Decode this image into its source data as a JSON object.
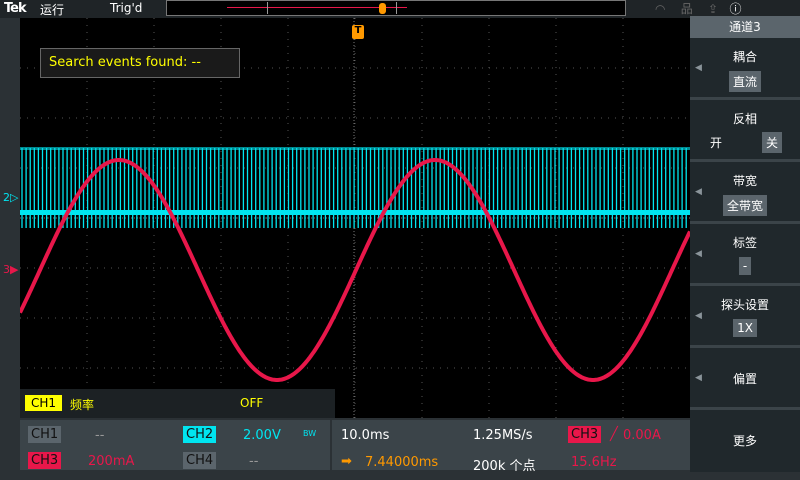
{
  "top": {
    "logo": "Tek",
    "run_state": "运行",
    "trigger_state": "Trig'd"
  },
  "search": {
    "text": "Search events found:  --"
  },
  "panel": {
    "title": "通道3",
    "items": [
      {
        "label": "耦合",
        "value": "直流"
      },
      {
        "label": "反相",
        "on": "开",
        "off": "关"
      },
      {
        "label": "带宽",
        "value": "全带宽"
      },
      {
        "label": "标签",
        "value": "-"
      },
      {
        "label": "探头设置",
        "value": "1X"
      },
      {
        "label": "偏置"
      },
      {
        "label": "更多"
      }
    ]
  },
  "measurement": {
    "channel": "CH1",
    "type": "频率",
    "value": "OFF"
  },
  "channels": {
    "ch1": {
      "label": "CH1",
      "scale": "--"
    },
    "ch2": {
      "label": "CH2",
      "scale": "2.00V",
      "bw": "BW"
    },
    "ch3": {
      "label": "CH3",
      "scale": "200mA"
    },
    "ch4": {
      "label": "CH4",
      "scale": "--"
    }
  },
  "timebase": {
    "scale": "10.0ms",
    "sample_rate": "1.25MS/s",
    "position": "7.44000ms",
    "record_length": "200k 个点"
  },
  "trigger": {
    "source": "CH3",
    "level": "0.00A",
    "frequency": "15.6Hz",
    "marker": "T"
  },
  "markers": {
    "ch2": "2",
    "ch3": "3"
  },
  "colors": {
    "ch1": "#ffff00",
    "ch2": "#00e5f0",
    "ch3": "#e8174a",
    "trigger": "#ff9900"
  }
}
